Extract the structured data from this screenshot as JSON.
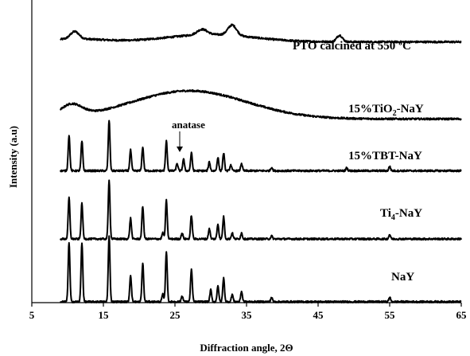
{
  "chart_data": {
    "type": "line",
    "title": "",
    "xlabel": "Diffraction angle, 2Θ",
    "ylabel": "Intensity (a.u)",
    "xlim": [
      5,
      65
    ],
    "xticks": [
      5,
      15,
      25,
      35,
      45,
      55,
      65
    ],
    "xtick_labels": [
      "5",
      "15",
      "25",
      "35",
      "45",
      "55",
      "65"
    ],
    "grid": false,
    "legend": "none",
    "line_color": "#000000",
    "series": [
      {
        "name": "PTO calcined at 550 ºC",
        "baseline": 0.88,
        "background": [],
        "peaks": [
          [
            11.0,
            0.025,
            0.6
          ],
          [
            28.8,
            0.018,
            0.7
          ],
          [
            33.0,
            0.035,
            0.6
          ],
          [
            48.0,
            0.022,
            0.4
          ]
        ],
        "humps": [
          [
            11,
            0.01,
            4
          ],
          [
            30,
            0.025,
            6
          ]
        ]
      },
      {
        "name": "15%TiO2-NaY",
        "baseline": 0.62,
        "background": [],
        "peaks": [],
        "humps": [
          [
            10.5,
            0.04,
            1.5
          ],
          [
            27.0,
            0.095,
            8
          ]
        ]
      },
      {
        "name": "15%TBT-NaY",
        "baseline": 0.445,
        "background": [],
        "peaks": [
          [
            10.2,
            0.12
          ],
          [
            12.0,
            0.1
          ],
          [
            15.8,
            0.17
          ],
          [
            18.8,
            0.07
          ],
          [
            20.5,
            0.08
          ],
          [
            23.8,
            0.1
          ],
          [
            25.3,
            0.025
          ],
          [
            26.2,
            0.04
          ],
          [
            27.3,
            0.06
          ],
          [
            29.8,
            0.03
          ],
          [
            31.0,
            0.045
          ],
          [
            31.8,
            0.06
          ],
          [
            32.8,
            0.02
          ],
          [
            34.3,
            0.025
          ],
          [
            38.5,
            0.012
          ],
          [
            49.0,
            0.01
          ],
          [
            55.0,
            0.015
          ]
        ],
        "humps": []
      },
      {
        "name": "Ti4-NaY",
        "baseline": 0.215,
        "background": [],
        "peaks": [
          [
            10.2,
            0.14
          ],
          [
            12.0,
            0.12
          ],
          [
            15.8,
            0.2
          ],
          [
            18.8,
            0.07
          ],
          [
            20.5,
            0.11
          ],
          [
            23.3,
            0.02
          ],
          [
            23.8,
            0.13
          ],
          [
            26.0,
            0.02
          ],
          [
            27.3,
            0.08
          ],
          [
            29.8,
            0.035
          ],
          [
            31.0,
            0.05
          ],
          [
            31.8,
            0.075
          ],
          [
            33.0,
            0.02
          ],
          [
            34.3,
            0.02
          ],
          [
            38.5,
            0.01
          ],
          [
            55.0,
            0.015
          ]
        ],
        "humps": []
      },
      {
        "name": "NaY",
        "baseline": 0.003,
        "background": [],
        "peaks": [
          [
            10.2,
            0.2
          ],
          [
            12.0,
            0.2
          ],
          [
            15.8,
            0.22
          ],
          [
            18.8,
            0.09
          ],
          [
            20.5,
            0.13
          ],
          [
            23.3,
            0.025
          ],
          [
            23.8,
            0.17
          ],
          [
            26.0,
            0.02
          ],
          [
            27.3,
            0.11
          ],
          [
            30.0,
            0.04
          ],
          [
            31.0,
            0.055
          ],
          [
            31.8,
            0.08
          ],
          [
            33.0,
            0.025
          ],
          [
            34.3,
            0.035
          ],
          [
            38.5,
            0.015
          ],
          [
            55.0,
            0.015
          ]
        ],
        "humps": []
      }
    ],
    "annotations": [
      {
        "text": "anatase",
        "x": 25.5,
        "series": 2
      }
    ]
  },
  "labels": {
    "s0_a": "PTO calcined at 550 ºC",
    "s1_a": "15%TiO",
    "s1_sub": "2",
    "s1_b": "-NaY",
    "s2_a": "15%TBT-NaY",
    "s3_a": "Ti",
    "s3_sub": "4",
    "s3_b": "-NaY",
    "s4_a": "NaY",
    "anatase": "anatase"
  }
}
